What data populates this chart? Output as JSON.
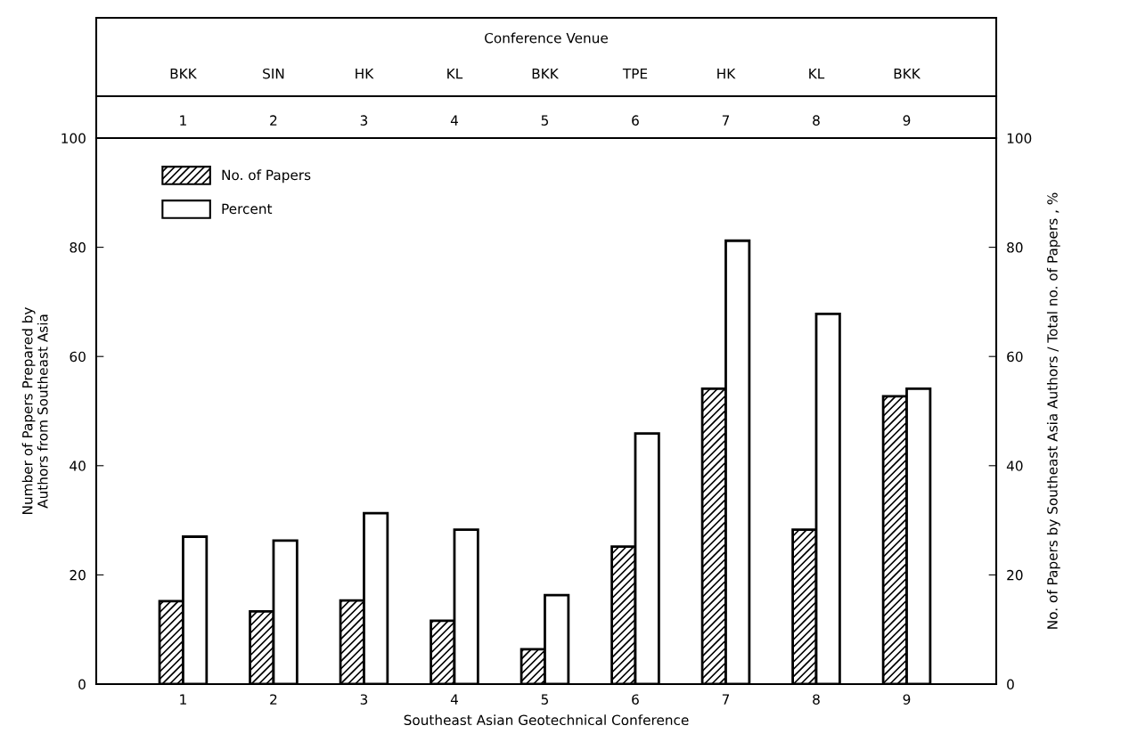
{
  "chart_data": {
    "type": "bar",
    "xlabel": "Southeast Asian Geotechnical Conference",
    "ylabel": "Number of Papers Prepared by\nAuthors from Southeast Asia",
    "y2label": "No. of Papers by Southeast Asia Authors / Total no. of Papers , %",
    "x2label": "Conference Venue",
    "categories": [
      "1",
      "2",
      "3",
      "4",
      "5",
      "6",
      "7",
      "8",
      "9"
    ],
    "series": [
      {
        "name": "No. of Papers",
        "color": "#000000",
        "values": [
          15.2,
          13.3,
          15.3,
          11.6,
          6.4,
          25.2,
          54.1,
          28.3,
          52.7
        ]
      },
      {
        "name": "Percent",
        "color": "#ffffff",
        "axis": "y2",
        "values": [
          27.0,
          26.3,
          31.3,
          28.3,
          16.3,
          45.9,
          81.2,
          67.8,
          54.1
        ]
      }
    ],
    "annotations": [
      "BKK",
      "SIN",
      "HK",
      "KL",
      "BKK",
      "TPE",
      "HK",
      "KL",
      "BKK"
    ],
    "ylim": [
      0,
      100
    ],
    "yticks": [
      0,
      20,
      40,
      60,
      80,
      100
    ],
    "y2lim": [
      0,
      100
    ],
    "y2ticks": [
      0,
      20,
      40,
      60,
      80,
      100
    ],
    "grid": false,
    "legend": "top left"
  }
}
